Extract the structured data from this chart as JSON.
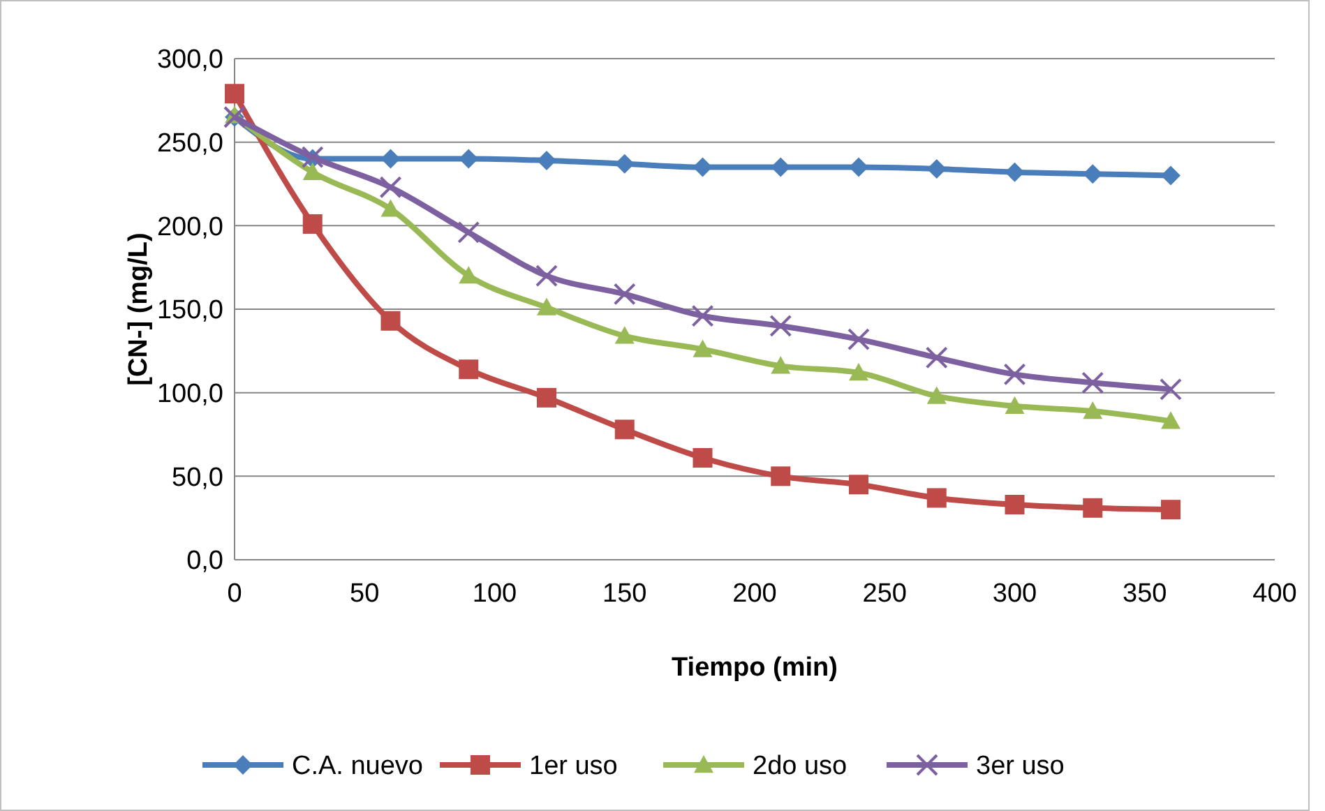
{
  "chart_data": {
    "type": "line",
    "xlabel": "Tiempo (min)",
    "ylabel": "[CN-] (mg/L)",
    "x": [
      0,
      30,
      60,
      90,
      120,
      150,
      180,
      210,
      240,
      270,
      300,
      330,
      360
    ],
    "series": [
      {
        "name": "C.A. nuevo",
        "color": "#4a7ebb",
        "marker": "diamond",
        "values": [
          265,
          240,
          240,
          240,
          239,
          237,
          235,
          235,
          235,
          234,
          232,
          231,
          230
        ]
      },
      {
        "name": "1er uso",
        "color": "#be4b48",
        "marker": "square",
        "values": [
          279,
          201,
          143,
          114,
          97,
          78,
          61,
          50,
          45,
          37,
          33,
          31,
          30
        ]
      },
      {
        "name": "2do uso",
        "color": "#98b954",
        "marker": "triangle",
        "values": [
          266,
          232,
          210,
          170,
          151,
          134,
          126,
          116,
          112,
          98,
          92,
          89,
          83
        ]
      },
      {
        "name": "3er uso",
        "color": "#7d60a0",
        "marker": "cross",
        "values": [
          265,
          241,
          223,
          196,
          170,
          159,
          146,
          140,
          132,
          121,
          111,
          106,
          102
        ]
      }
    ],
    "xlim": [
      0,
      400
    ],
    "xticks": [
      0,
      50,
      100,
      150,
      200,
      250,
      300,
      350,
      400
    ],
    "ylim": [
      0,
      300
    ],
    "yticks": [
      {
        "value": 0,
        "label": "0,0"
      },
      {
        "value": 50,
        "label": "50,0"
      },
      {
        "value": 100,
        "label": "100,0"
      },
      {
        "value": 150,
        "label": "150,0"
      },
      {
        "value": 200,
        "label": "200,0"
      },
      {
        "value": 250,
        "label": "250,0"
      },
      {
        "value": 300,
        "label": "300,0"
      }
    ],
    "grid": "y",
    "legend": "bottom",
    "line_style": "solid"
  }
}
